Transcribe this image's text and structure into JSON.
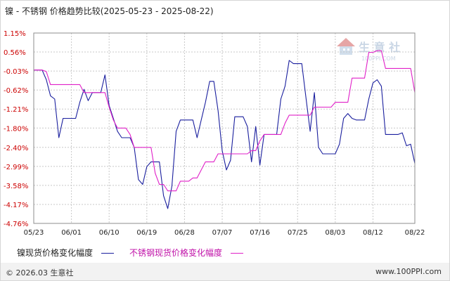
{
  "header": {
    "title": "镍 - 不锈钢 价格趋势比较(2025-05-23 - 2025-08-22)"
  },
  "legend": {
    "nickel_label": "镍现货价格变化幅度",
    "stainless_label": "不锈钢现货价格变化幅度"
  },
  "footer": {
    "copyright": "© 2026.03 生意社",
    "website": "www.100PPI.com"
  },
  "watermark": {
    "brand": "生 意 社",
    "url": "100PPI.COM"
  },
  "colors": {
    "nickel": "#1a1f9e",
    "stainless": "#e020c8",
    "grid": "#c8c8c8",
    "ytick_upper": "#cc0000",
    "ytick_lower": "#cc0000"
  },
  "chart_data": {
    "type": "line",
    "xlim": [
      0,
      91
    ],
    "ylim": [
      -4.76,
      1.15
    ],
    "x_ticks": [
      {
        "label": "05/23",
        "x": 0
      },
      {
        "label": "06/01",
        "x": 9
      },
      {
        "label": "06/10",
        "x": 18
      },
      {
        "label": "06/19",
        "x": 27
      },
      {
        "label": "06/28",
        "x": 36
      },
      {
        "label": "07/07",
        "x": 45
      },
      {
        "label": "07/16",
        "x": 54
      },
      {
        "label": "07/25",
        "x": 63
      },
      {
        "label": "08/03",
        "x": 72
      },
      {
        "label": "08/12",
        "x": 81
      },
      {
        "label": "08/22",
        "x": 91
      }
    ],
    "y_ticks": [
      "1.15%",
      "0.56%",
      "-0.03%",
      "-0.62%",
      "-1.21%",
      "-1.80%",
      "-2.40%",
      "-2.99%",
      "-3.58%",
      "-4.17%",
      "-4.76%"
    ],
    "y_tick_values": [
      1.15,
      0.56,
      -0.03,
      -0.62,
      -1.21,
      -1.8,
      -2.4,
      -2.99,
      -3.58,
      -4.17,
      -4.76
    ],
    "series": [
      {
        "name": "镍现货价格变化幅度",
        "x": [
          0,
          2,
          3,
          4,
          5,
          6,
          7,
          8,
          9,
          10,
          11,
          12,
          13,
          14,
          15,
          16,
          17,
          18,
          19,
          20,
          21,
          22,
          23,
          24,
          25,
          26,
          27,
          28,
          29,
          30,
          31,
          32,
          33,
          34,
          35,
          36,
          37,
          38,
          39,
          40,
          41,
          42,
          43,
          44,
          45,
          46,
          47,
          48,
          49,
          50,
          51,
          52,
          53,
          54,
          55,
          56,
          57,
          58,
          59,
          60,
          61,
          62,
          63,
          64,
          65,
          66,
          67,
          68,
          69,
          70,
          71,
          72,
          73,
          74,
          75,
          76,
          77,
          78,
          79,
          80,
          81,
          82,
          83,
          84,
          85,
          86,
          87,
          88,
          89,
          90,
          91
        ],
        "values": [
          0.0,
          0.0,
          -0.3,
          -0.8,
          -0.9,
          -2.1,
          -1.5,
          -1.5,
          -1.5,
          -1.5,
          -1.0,
          -0.6,
          -0.95,
          -0.7,
          -0.7,
          -0.7,
          -0.15,
          -1.1,
          -1.5,
          -1.9,
          -2.1,
          -2.1,
          -2.1,
          -2.4,
          -3.4,
          -3.55,
          -3.0,
          -2.85,
          -2.85,
          -2.85,
          -3.9,
          -4.3,
          -3.6,
          -1.9,
          -1.55,
          -1.55,
          -1.55,
          -1.55,
          -2.1,
          -1.55,
          -1.0,
          -0.35,
          -0.35,
          -1.25,
          -2.5,
          -3.1,
          -2.8,
          -1.45,
          -1.45,
          -1.45,
          -1.75,
          -2.85,
          -1.75,
          -2.95,
          -2.0,
          -2.0,
          -2.0,
          -2.0,
          -0.9,
          -0.5,
          0.3,
          0.2,
          0.2,
          0.2,
          -0.85,
          -1.9,
          -0.7,
          -2.4,
          -2.6,
          -2.6,
          -2.6,
          -2.6,
          -2.3,
          -1.5,
          -1.35,
          -1.5,
          -1.55,
          -1.55,
          -1.55,
          -0.9,
          -0.4,
          -0.3,
          -0.5,
          -2.0,
          -2.0,
          -2.0,
          -2.0,
          -1.95,
          -2.35,
          -2.3,
          -2.9
        ],
        "color": "#1a1f9e"
      },
      {
        "name": "不锈钢现货价格变化幅度",
        "x": [
          0,
          2,
          3,
          4,
          5,
          6,
          7,
          8,
          9,
          10,
          11,
          12,
          13,
          14,
          15,
          16,
          17,
          18,
          19,
          20,
          21,
          22,
          23,
          24,
          25,
          26,
          27,
          28,
          29,
          30,
          31,
          32,
          33,
          34,
          35,
          36,
          37,
          38,
          39,
          40,
          41,
          42,
          43,
          44,
          45,
          46,
          47,
          48,
          49,
          50,
          51,
          52,
          53,
          54,
          55,
          56,
          57,
          58,
          59,
          60,
          61,
          62,
          63,
          64,
          65,
          66,
          67,
          68,
          69,
          70,
          71,
          72,
          73,
          74,
          75,
          76,
          77,
          78,
          79,
          80,
          81,
          82,
          83,
          84,
          85,
          86,
          87,
          88,
          89,
          90,
          91
        ],
        "values": [
          0.0,
          0.0,
          -0.05,
          -0.45,
          -0.45,
          -0.45,
          -0.45,
          -0.45,
          -0.45,
          -0.45,
          -0.45,
          -0.7,
          -0.7,
          -0.7,
          -0.7,
          -0.7,
          -0.7,
          -1.15,
          -1.55,
          -1.8,
          -1.8,
          -1.8,
          -2.0,
          -2.4,
          -2.4,
          -2.4,
          -2.4,
          -2.4,
          -3.2,
          -3.55,
          -3.55,
          -3.75,
          -3.75,
          -3.75,
          -3.45,
          -3.45,
          -3.45,
          -3.35,
          -3.35,
          -3.1,
          -2.85,
          -2.85,
          -2.85,
          -2.6,
          -2.6,
          -2.6,
          -2.6,
          -2.6,
          -2.6,
          -2.6,
          -2.6,
          -2.5,
          -2.5,
          -2.2,
          -2.0,
          -2.0,
          -2.0,
          -2.0,
          -2.0,
          -1.65,
          -1.4,
          -1.4,
          -1.4,
          -1.4,
          -1.4,
          -1.4,
          -1.15,
          -1.15,
          -1.15,
          -1.15,
          -1.15,
          -1.0,
          -1.0,
          -1.0,
          -1.0,
          -0.25,
          -0.25,
          -0.25,
          -0.25,
          0.55,
          0.55,
          0.6,
          0.6,
          0.05,
          0.05,
          0.05,
          0.05,
          0.05,
          0.05,
          0.05,
          -0.7
        ],
        "color": "#e020c8"
      }
    ],
    "grid": true,
    "legend_position": "bottom"
  }
}
